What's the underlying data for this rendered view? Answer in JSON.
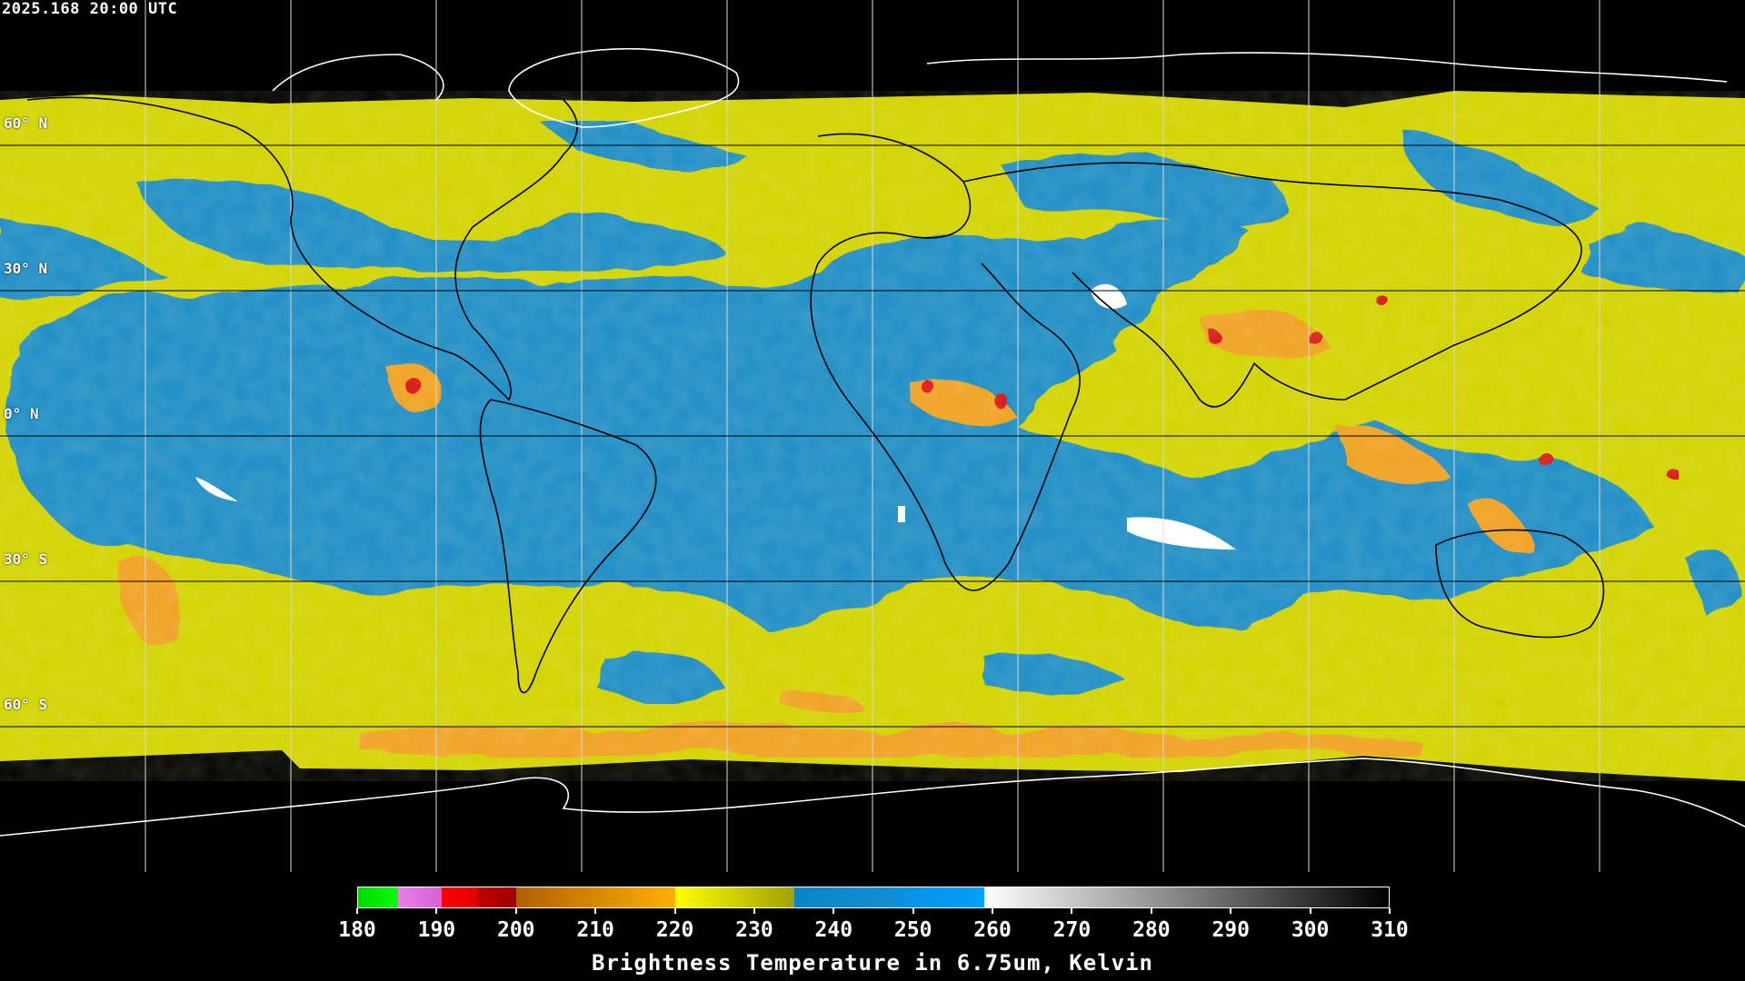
{
  "header": {
    "timestamp": "2025.168 20:00 UTC"
  },
  "latitude_labels": [
    "60° N",
    "30° N",
    "0° N",
    "30° S",
    "60° S"
  ],
  "colors": {
    "background": "#000000",
    "dry_air_blue": "#1e8cc8",
    "moist_yellow": "#d2d200",
    "cold_orange": "#f0a020",
    "very_cold_red": "#d81818",
    "warm_white": "#ffffff",
    "grid": "#000000",
    "coastline_ocean_area": "#000000",
    "coastline_polar": "#ffffff"
  },
  "colorbar": {
    "title": "Brightness Temperature in 6.75um, Kelvin",
    "min": 180,
    "max": 310,
    "tick_labels": [
      "180",
      "190",
      "200",
      "210",
      "220",
      "230",
      "240",
      "250",
      "260",
      "270",
      "280",
      "290",
      "300",
      "310"
    ],
    "segments": [
      {
        "from": 180,
        "to": 185,
        "color_start": "#00d800",
        "color_end": "#00ff00"
      },
      {
        "from": 185,
        "to": 190.5,
        "color_start": "#e880e8",
        "color_end": "#d860d8"
      },
      {
        "from": 190.5,
        "to": 195,
        "color_start": "#ff0000",
        "color_end": "#e00000"
      },
      {
        "from": 195,
        "to": 200,
        "color_start": "#c00000",
        "color_end": "#a00000"
      },
      {
        "from": 200,
        "to": 220,
        "color_start": "#b06000",
        "color_end": "#ffb000"
      },
      {
        "from": 220,
        "to": 235,
        "color_start": "#ffff00",
        "color_end": "#a0a000"
      },
      {
        "from": 235,
        "to": 248,
        "color_start": "#0c84c6",
        "color_end": "#1090d4"
      },
      {
        "from": 248,
        "to": 259,
        "color_start": "#0a90e0",
        "color_end": "#00a0ff"
      },
      {
        "from": 259,
        "to": 310,
        "color_start": "#ffffff",
        "color_end": "#000000"
      }
    ]
  },
  "map": {
    "projection": "equirectangular",
    "lat_range": [
      -90,
      90
    ],
    "lon_grid_count": 12,
    "lat_grid_values": [
      60,
      30,
      0,
      -30,
      -60
    ]
  }
}
